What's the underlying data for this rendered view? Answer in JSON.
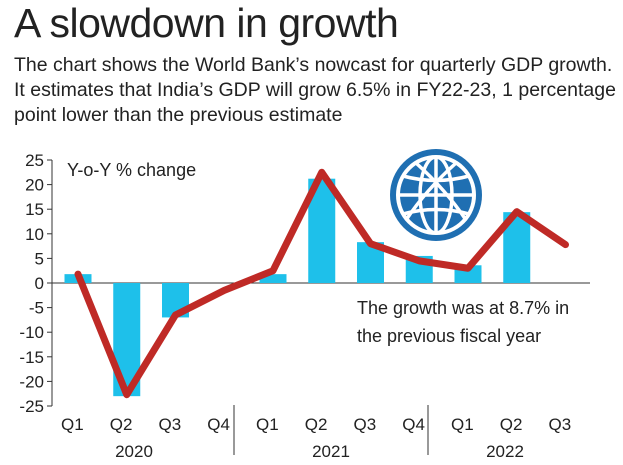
{
  "header": {
    "title": "A slowdown in growth",
    "subtitle": "The chart shows the World Bank’s nowcast for quarterly GDP growth. It estimates that India’s GDP will grow 6.5% in FY22-23, 1 percentage point lower than the previous estimate"
  },
  "chart_data": {
    "type": "bar",
    "ylabel": "Y-o-Y % change",
    "ylim": [
      -25,
      25
    ],
    "yticks": [
      25,
      20,
      15,
      10,
      5,
      0,
      -5,
      -10,
      -15,
      -20,
      -25
    ],
    "categories": [
      "Q1",
      "Q2",
      "Q3",
      "Q4",
      "Q1",
      "Q2",
      "Q3",
      "Q4",
      "Q1",
      "Q2",
      "Q3"
    ],
    "year_groups": [
      {
        "label": "2020",
        "span": [
          0,
          3
        ]
      },
      {
        "label": "2021",
        "span": [
          4,
          7
        ]
      },
      {
        "label": "2022",
        "span": [
          8,
          10
        ]
      }
    ],
    "series": [
      {
        "values": [
          1.8,
          -23,
          -7,
          0,
          1.8,
          21.2,
          8.3,
          5.5,
          3.6,
          14.4,
          null
        ],
        "type": "bar",
        "color": "#1ec0ea"
      },
      {
        "values": [
          1.8,
          -22.7,
          -6.5,
          -1.5,
          2.5,
          22.5,
          8.0,
          4.5,
          3.0,
          14.5,
          7.8
        ],
        "type": "line",
        "color": "#bf2a26"
      }
    ],
    "annotation": [
      "The growth was at 8.7% in",
      "the previous fiscal year"
    ],
    "logo": "world-bank-globe-icon",
    "grid": "zero line only"
  }
}
